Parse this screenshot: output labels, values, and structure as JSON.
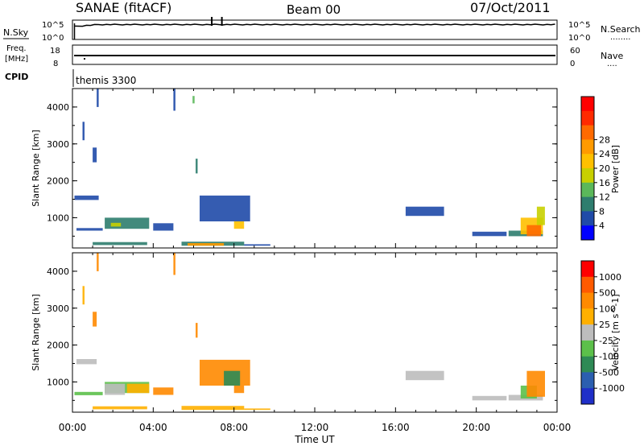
{
  "header": {
    "station": "SANAE (fitACF)",
    "beam": "Beam 00",
    "date": "07/Oct/2011"
  },
  "strips": {
    "nsky": {
      "label": "N.Sky",
      "ticks_left": [
        "10^5",
        "10^0"
      ],
      "ticks_right": [
        "10^5",
        "10^0"
      ],
      "right_label": "N.Search",
      "right_dots": "........"
    },
    "freq": {
      "label_line1": "Freq.",
      "label_line2": "[MHz]",
      "ticks_left": [
        "18",
        "8"
      ],
      "ticks_right": [
        "60",
        "0"
      ],
      "right_label": "Nave",
      "right_dots": "...."
    },
    "cpid": {
      "label": "CPID",
      "value": "themis 3300"
    }
  },
  "chart_data": [
    {
      "type": "heatmap",
      "name": "power",
      "ylabel": "Slant Range [km]",
      "xlabel": "",
      "xlim_hours": [
        0,
        24
      ],
      "ylim_km": [
        180,
        4500
      ],
      "yticks": [
        "1000",
        "2000",
        "3000",
        "4000"
      ],
      "colorbar": {
        "label": "Power [dB]",
        "ticks": [
          "4",
          "8",
          "12",
          "16",
          "20",
          "24",
          "28"
        ],
        "colors": [
          "#0000ff",
          "#1f4aa8",
          "#2e7d6e",
          "#5bb85a",
          "#c8d000",
          "#ffc000",
          "#ff9a00",
          "#ff6a00",
          "#ff2a00",
          "#ff0000"
        ]
      },
      "regions": [
        {
          "x0": 0.1,
          "x1": 1.3,
          "y0": 1480,
          "y1": 1600,
          "level": 1
        },
        {
          "x0": 0.2,
          "x1": 1.5,
          "y0": 650,
          "y1": 720,
          "level": 1
        },
        {
          "x0": 1.6,
          "x1": 3.8,
          "y0": 700,
          "y1": 1000,
          "level": 2
        },
        {
          "x0": 1.9,
          "x1": 2.4,
          "y0": 760,
          "y1": 860,
          "level": 4
        },
        {
          "x0": 4.0,
          "x1": 5.0,
          "y0": 650,
          "y1": 850,
          "level": 1
        },
        {
          "x0": 1.0,
          "x1": 3.7,
          "y0": 260,
          "y1": 340,
          "level": 2
        },
        {
          "x0": 5.4,
          "x1": 8.5,
          "y0": 240,
          "y1": 350,
          "level": 2
        },
        {
          "x0": 5.7,
          "x1": 7.5,
          "y0": 240,
          "y1": 310,
          "level": 6
        },
        {
          "x0": 8.5,
          "x1": 9.8,
          "y0": 240,
          "y1": 280,
          "level": 1
        },
        {
          "x0": 6.3,
          "x1": 8.8,
          "y0": 900,
          "y1": 1600,
          "level": 1
        },
        {
          "x0": 8.0,
          "x1": 8.5,
          "y0": 700,
          "y1": 900,
          "level": 5
        },
        {
          "x0": 0.5,
          "x1": 0.6,
          "y0": 3100,
          "y1": 3600,
          "level": 1
        },
        {
          "x0": 1.0,
          "x1": 1.2,
          "y0": 2500,
          "y1": 2900,
          "level": 1
        },
        {
          "x0": 1.2,
          "x1": 1.3,
          "y0": 4000,
          "y1": 4500,
          "level": 1
        },
        {
          "x0": 5.0,
          "x1": 5.1,
          "y0": 3900,
          "y1": 4500,
          "level": 1
        },
        {
          "x0": 6.1,
          "x1": 6.2,
          "y0": 2200,
          "y1": 2600,
          "level": 2
        },
        {
          "x0": 5.95,
          "x1": 6.05,
          "y0": 4100,
          "y1": 4300,
          "level": 3
        },
        {
          "x0": 16.5,
          "x1": 18.4,
          "y0": 1050,
          "y1": 1300,
          "level": 1
        },
        {
          "x0": 19.8,
          "x1": 21.5,
          "y0": 500,
          "y1": 620,
          "level": 1
        },
        {
          "x0": 21.6,
          "x1": 23.3,
          "y0": 500,
          "y1": 650,
          "level": 2
        },
        {
          "x0": 22.2,
          "x1": 23.3,
          "y0": 550,
          "y1": 1000,
          "level": 5
        },
        {
          "x0": 22.5,
          "x1": 23.2,
          "y0": 500,
          "y1": 800,
          "level": 7
        },
        {
          "x0": 23.0,
          "x1": 23.4,
          "y0": 800,
          "y1": 1300,
          "level": 4
        }
      ]
    },
    {
      "type": "heatmap",
      "name": "velocity",
      "ylabel": "Slant Range [km]",
      "xlabel": "Time UT",
      "xlim_hours": [
        0,
        24
      ],
      "ylim_km": [
        180,
        4500
      ],
      "xticks": [
        "00:00",
        "04:00",
        "08:00",
        "12:00",
        "16:00",
        "20:00",
        "00:00"
      ],
      "yticks": [
        "1000",
        "2000",
        "3000",
        "4000"
      ],
      "colorbar": {
        "label": "Velocity [m s^-1]",
        "ticks": [
          "1000",
          "500",
          "100",
          "25",
          "-25",
          "-100",
          "-500",
          "-1000"
        ],
        "colors": [
          "#1f2fc8",
          "#2b5fb0",
          "#2e8a55",
          "#5cc04a",
          "#bdbdbd",
          "#ffb000",
          "#ff8a00",
          "#ff5a00",
          "#ff0000"
        ]
      },
      "regions": [
        {
          "x0": 0.2,
          "x1": 1.2,
          "y0": 1480,
          "y1": 1620,
          "level": 4
        },
        {
          "x0": 0.1,
          "x1": 1.5,
          "y0": 640,
          "y1": 730,
          "level": 3
        },
        {
          "x0": 1.6,
          "x1": 3.8,
          "y0": 700,
          "y1": 1000,
          "level": 3
        },
        {
          "x0": 1.6,
          "x1": 2.6,
          "y0": 650,
          "y1": 950,
          "level": 4
        },
        {
          "x0": 2.7,
          "x1": 3.8,
          "y0": 700,
          "y1": 950,
          "level": 5
        },
        {
          "x0": 4.0,
          "x1": 5.0,
          "y0": 650,
          "y1": 850,
          "level": 6
        },
        {
          "x0": 1.0,
          "x1": 3.7,
          "y0": 260,
          "y1": 340,
          "level": 5
        },
        {
          "x0": 5.4,
          "x1": 8.5,
          "y0": 240,
          "y1": 350,
          "level": 5
        },
        {
          "x0": 8.5,
          "x1": 9.8,
          "y0": 240,
          "y1": 280,
          "level": 5
        },
        {
          "x0": 6.3,
          "x1": 8.8,
          "y0": 900,
          "y1": 1600,
          "level": 6
        },
        {
          "x0": 7.5,
          "x1": 8.3,
          "y0": 900,
          "y1": 1300,
          "level": 2
        },
        {
          "x0": 8.0,
          "x1": 8.5,
          "y0": 700,
          "y1": 900,
          "level": 6
        },
        {
          "x0": 0.5,
          "x1": 0.6,
          "y0": 3100,
          "y1": 3600,
          "level": 5
        },
        {
          "x0": 1.0,
          "x1": 1.2,
          "y0": 2500,
          "y1": 2900,
          "level": 6
        },
        {
          "x0": 1.2,
          "x1": 1.3,
          "y0": 4000,
          "y1": 4500,
          "level": 6
        },
        {
          "x0": 5.0,
          "x1": 5.1,
          "y0": 3900,
          "y1": 4500,
          "level": 6
        },
        {
          "x0": 6.1,
          "x1": 6.2,
          "y0": 2200,
          "y1": 2600,
          "level": 6
        },
        {
          "x0": 16.5,
          "x1": 18.4,
          "y0": 1050,
          "y1": 1300,
          "level": 4
        },
        {
          "x0": 19.8,
          "x1": 21.5,
          "y0": 500,
          "y1": 620,
          "level": 4
        },
        {
          "x0": 21.6,
          "x1": 23.3,
          "y0": 500,
          "y1": 650,
          "level": 4
        },
        {
          "x0": 22.2,
          "x1": 23.0,
          "y0": 550,
          "y1": 900,
          "level": 3
        },
        {
          "x0": 22.5,
          "x1": 23.4,
          "y0": 600,
          "y1": 1300,
          "level": 6
        }
      ]
    }
  ]
}
